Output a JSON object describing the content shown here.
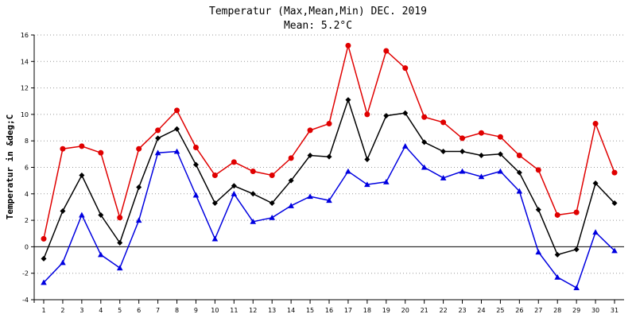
{
  "chart_data": {
    "type": "line",
    "title": "Temperatur (Max,Mean,Min) DEC. 2019",
    "subtitle": "Mean: 5.2°C",
    "xlabel": "",
    "ylabel": "Temperatur in &deg;C",
    "x": [
      1,
      2,
      3,
      4,
      5,
      6,
      7,
      8,
      9,
      10,
      11,
      12,
      13,
      14,
      15,
      16,
      17,
      18,
      19,
      20,
      21,
      22,
      23,
      24,
      25,
      26,
      27,
      28,
      29,
      30,
      31
    ],
    "ylim": [
      -4,
      16
    ],
    "yticks": [
      -4,
      -2,
      0,
      2,
      4,
      6,
      8,
      10,
      12,
      14,
      16
    ],
    "grid": "horizontal dotted",
    "legend": "none",
    "series": [
      {
        "color": "#e00000",
        "marker": "circle",
        "values": [
          0.6,
          7.4,
          7.6,
          7.1,
          2.2,
          7.4,
          8.8,
          10.3,
          7.5,
          5.4,
          6.4,
          5.7,
          5.4,
          6.7,
          8.8,
          9.3,
          15.2,
          10.0,
          14.8,
          13.5,
          9.8,
          9.4,
          8.2,
          8.6,
          8.3,
          6.9,
          5.8,
          2.4,
          2.6,
          9.3,
          5.6
        ]
      },
      {
        "color": "#000000",
        "marker": "diamond",
        "values": [
          -0.9,
          2.7,
          5.4,
          2.4,
          0.3,
          4.5,
          8.2,
          8.9,
          6.2,
          3.3,
          4.6,
          4.0,
          3.3,
          5.0,
          6.9,
          6.8,
          11.1,
          6.6,
          9.9,
          10.1,
          7.9,
          7.2,
          7.2,
          6.9,
          7.0,
          5.6,
          2.8,
          -0.6,
          -0.2,
          4.8,
          3.3
        ]
      },
      {
        "color": "#0000e0",
        "marker": "triangle",
        "values": [
          -2.7,
          -1.2,
          2.4,
          -0.6,
          -1.6,
          2.0,
          7.1,
          7.2,
          3.9,
          0.6,
          4.0,
          1.9,
          2.2,
          3.1,
          3.8,
          3.5,
          5.7,
          4.7,
          4.9,
          7.6,
          6.0,
          5.2,
          5.7,
          5.3,
          5.7,
          4.2,
          -0.4,
          -2.3,
          -3.1,
          1.1,
          -0.3
        ]
      }
    ]
  }
}
